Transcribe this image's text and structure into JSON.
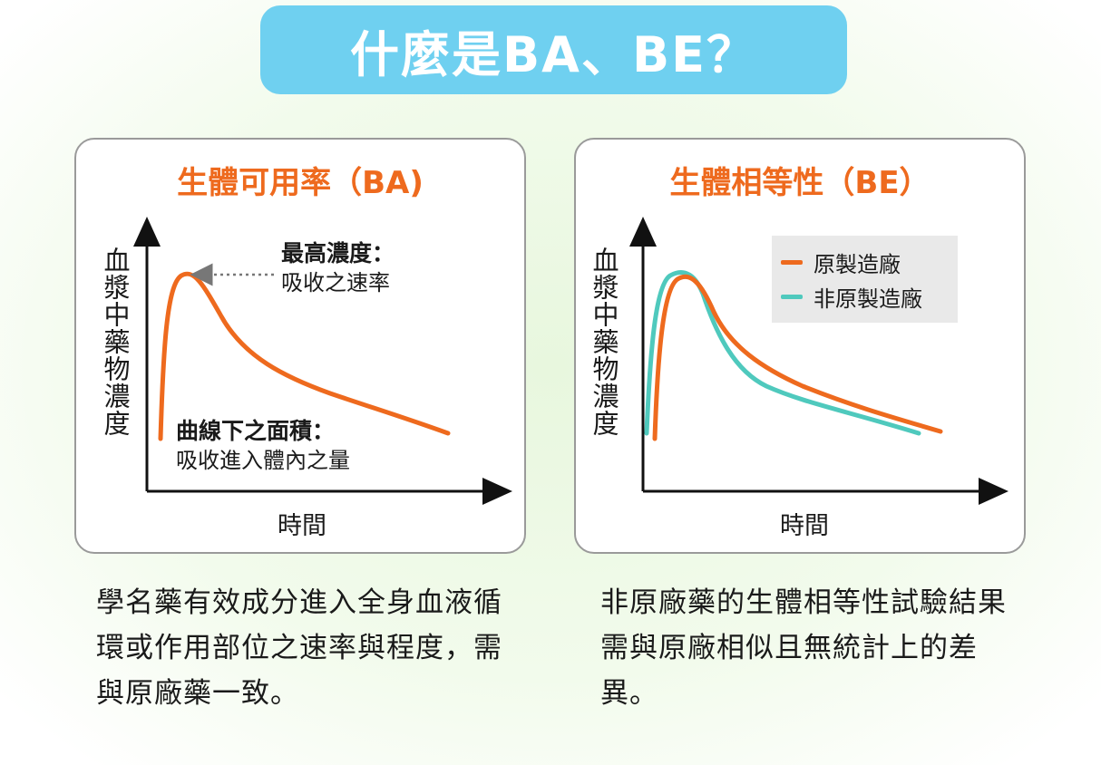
{
  "header": {
    "title": "什麼是BA、BE？"
  },
  "ba_panel": {
    "title": "生體可用率（BA)",
    "ylabel": "血漿中藥物濃度",
    "xlabel": "時間",
    "peak_heading": "最高濃度：",
    "peak_desc": "吸收之速率",
    "auc_heading": "曲線下之面積：",
    "auc_desc": "吸收進入體內之量",
    "caption": "學名藥有效成分進入全身血液循環或作用部位之速率與程度，需與原廠藥一致。"
  },
  "be_panel": {
    "title": "生體相等性（BE）",
    "ylabel": "血漿中藥物濃度",
    "xlabel": "時間",
    "legend": [
      {
        "label": "原製造廠",
        "color": "#ee6a1e"
      },
      {
        "label": "非原製造廠",
        "color": "#4fc9bd"
      }
    ],
    "caption": "非原廠藥的生體相等性試驗結果需與原廠相似且無統計上的差異。"
  },
  "colors": {
    "title_bg": "#6fd0f0",
    "accent_orange": "#ee6a1e",
    "accent_teal": "#4fc9bd"
  }
}
